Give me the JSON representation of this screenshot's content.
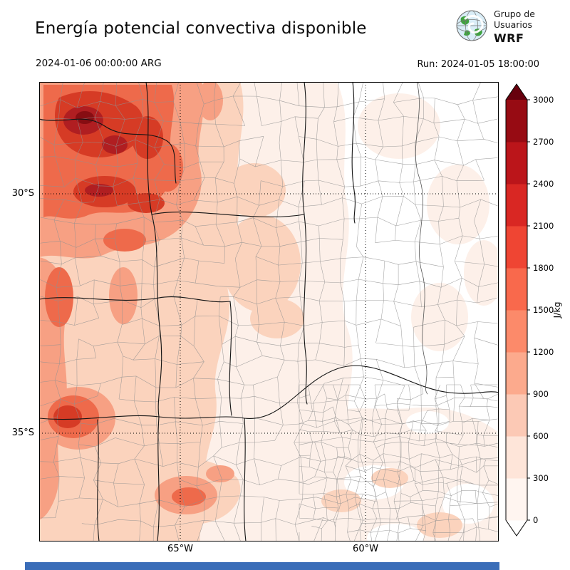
{
  "header": {
    "title": "Energía potencial convectiva disponible",
    "valid_time": "2024-01-06 00:00:00 ARG",
    "run_label": "Run: 2024-01-05 18:00:00"
  },
  "logo": {
    "org_line1": "Grupo de",
    "org_line2": "Usuarios",
    "brand": "WRF"
  },
  "axes": {
    "lat": [
      "30°S",
      "35°S"
    ],
    "lon": [
      "65°W",
      "60°W"
    ]
  },
  "colorbar": {
    "label": "J/kg",
    "tick_values": [
      "0",
      "300",
      "600",
      "900",
      "1200",
      "1500",
      "1800",
      "2100",
      "2400",
      "2700",
      "3000"
    ],
    "segment_colors": [
      "#fff5f0",
      "#fee5d9",
      "#fcc9b5",
      "#fcaa8d",
      "#fc8a6a",
      "#f9694c",
      "#ef4533",
      "#d92723",
      "#bb151a",
      "#970b13"
    ],
    "over_color": "#67000d",
    "under_color": "#ffffff"
  },
  "chart_data": {
    "type": "heatmap",
    "title": "Energía potencial convectiva disponible",
    "units": "J/kg",
    "value_range": [
      0,
      3000
    ],
    "contour_interval": 300,
    "valid_time": "2024-01-06 00:00:00 ARG",
    "model_run": "2024-01-05 18:00:00",
    "lat_gridlines": [
      "30°S",
      "35°S"
    ],
    "lon_gridlines": [
      "65°W",
      "60°W"
    ],
    "shading_summary": "Highest CAPE shading (1500-3000 J/kg) over the northwest corner; moderate values (600-1200) along the west edge, near 35S west, and south-center blobs; light values over center; near 0 (white) over the east"
  },
  "footer": {
    "bar_color": "#3a6db8"
  }
}
